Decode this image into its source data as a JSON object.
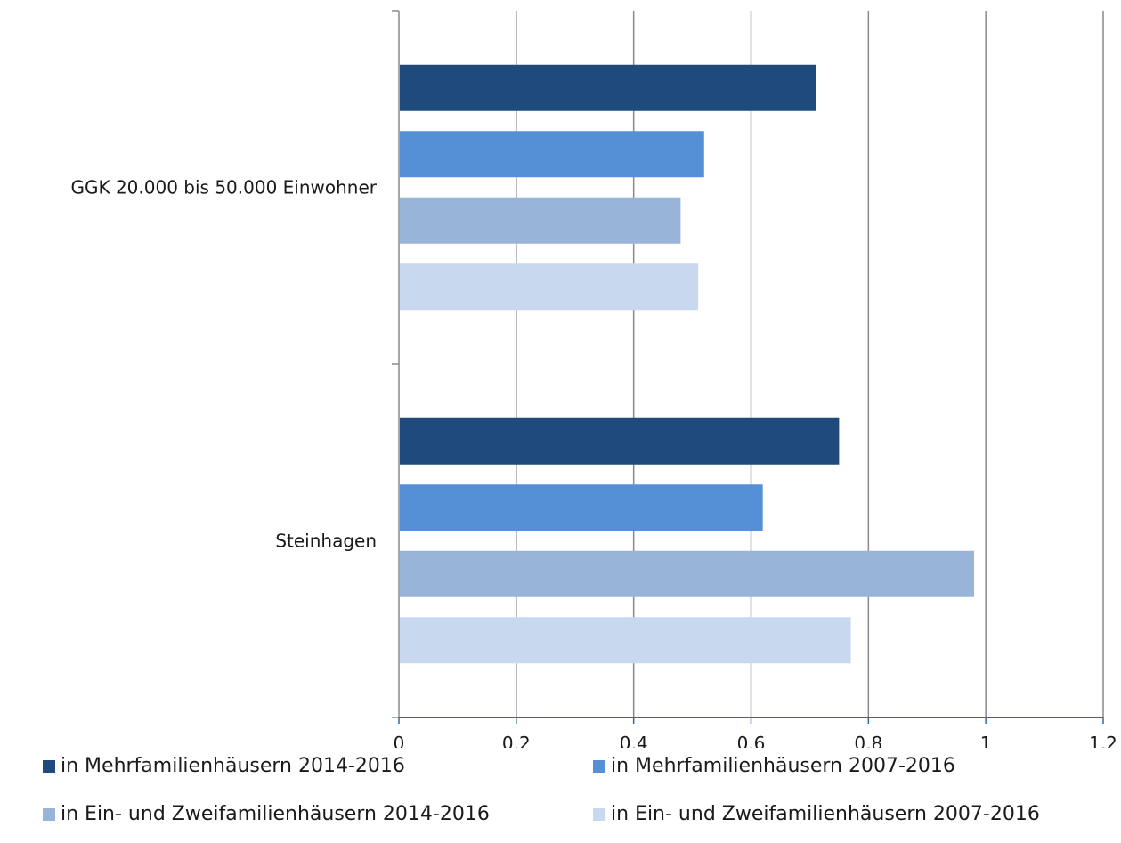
{
  "chart_data": {
    "type": "bar",
    "orientation": "horizontal",
    "categories": [
      "GGK 20.000 bis 50.000 Einwohner",
      "Steinhagen"
    ],
    "series": [
      {
        "name": "in Mehrfamilienhäusern 2014-2016",
        "color": "#1f4a7c",
        "values": [
          0.71,
          0.75
        ]
      },
      {
        "name": "in Mehrfamilienhäusern 2007-2016",
        "color": "#558fd6",
        "values": [
          0.52,
          0.62
        ]
      },
      {
        "name": "in Ein- und Zweifamilienhäusern 2014-2016",
        "color": "#98b4d9",
        "values": [
          0.48,
          0.98
        ]
      },
      {
        "name": "in Ein- und Zweifamilienhäusern 2007-2016",
        "color": "#c8d9ef",
        "values": [
          0.51,
          0.77
        ]
      }
    ],
    "x_ticks": [
      "0",
      "0,2",
      "0,4",
      "0,6",
      "0,8",
      "1",
      "1,2"
    ],
    "xlim": [
      0,
      1.2
    ],
    "grid": "vertical",
    "legend_position": "bottom"
  }
}
